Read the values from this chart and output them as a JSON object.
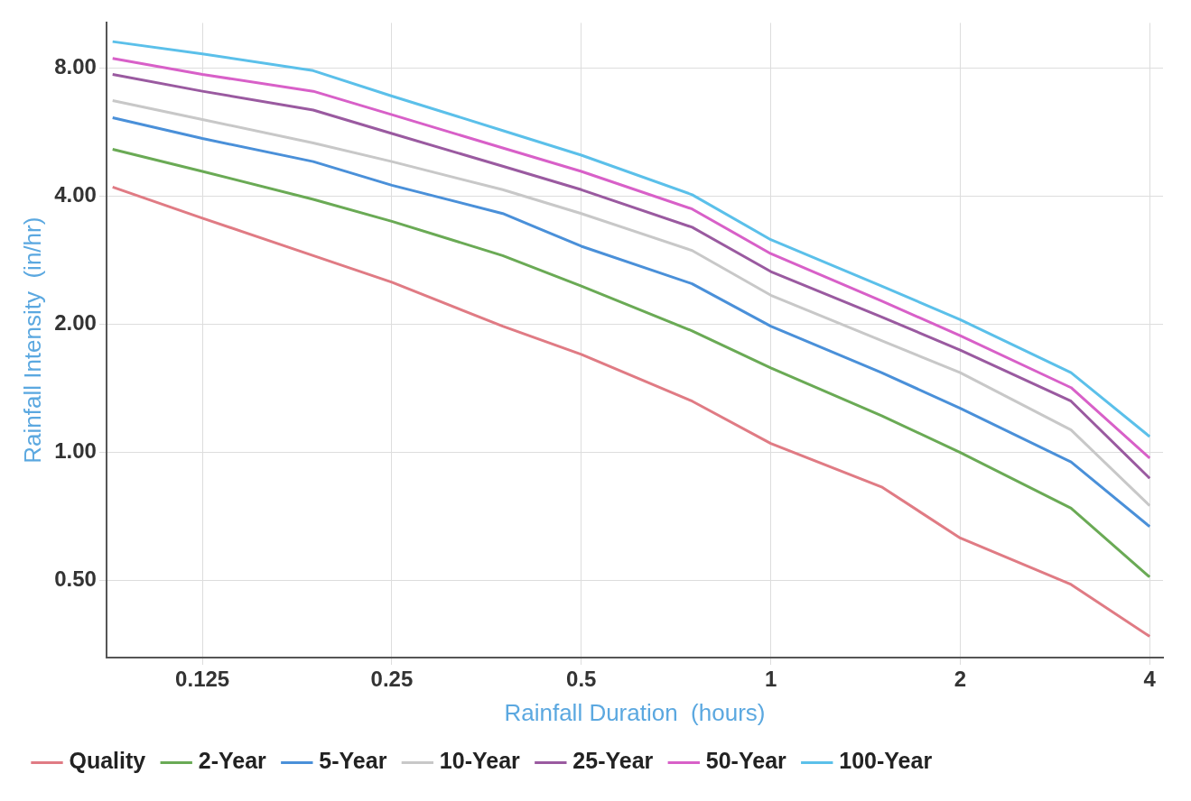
{
  "chart_data": {
    "type": "line",
    "xlabel": "Rainfall Duration  (hours)",
    "ylabel": "Rainfall Intensity  (in/hr)",
    "x": [
      0.09,
      0.125,
      0.1875,
      0.25,
      0.375,
      0.5,
      0.75,
      1,
      1.5,
      2,
      3,
      4
    ],
    "series": [
      {
        "name": "Quality",
        "color": "#e07b84",
        "values": [
          4.2,
          3.55,
          2.9,
          2.51,
          1.98,
          1.7,
          1.32,
          1.05,
          0.83,
          0.63,
          0.49,
          0.37
        ]
      },
      {
        "name": "2-Year",
        "color": "#6aaa55",
        "values": [
          5.15,
          4.57,
          3.93,
          3.49,
          2.9,
          2.46,
          1.93,
          1.58,
          1.22,
          1.0,
          0.74,
          0.51
        ]
      },
      {
        "name": "5-Year",
        "color": "#4a90d9",
        "values": [
          6.11,
          5.46,
          4.82,
          4.24,
          3.64,
          3.05,
          2.49,
          1.98,
          1.54,
          1.27,
          0.95,
          0.67
        ]
      },
      {
        "name": "10-Year",
        "color": "#c8c8c8",
        "values": [
          6.7,
          6.05,
          5.33,
          4.82,
          4.14,
          3.64,
          2.98,
          2.34,
          1.83,
          1.54,
          1.13,
          0.75
        ]
      },
      {
        "name": "25-Year",
        "color": "#9a5aa0",
        "values": [
          7.72,
          7.05,
          6.37,
          5.61,
          4.7,
          4.14,
          3.38,
          2.66,
          2.08,
          1.74,
          1.32,
          0.87
        ]
      },
      {
        "name": "50-Year",
        "color": "#d860c8",
        "values": [
          8.42,
          7.72,
          7.05,
          6.21,
          5.19,
          4.57,
          3.73,
          2.93,
          2.27,
          1.88,
          1.42,
          0.97
        ]
      },
      {
        "name": "100-Year",
        "color": "#5bc0ea",
        "values": [
          9.22,
          8.63,
          7.88,
          6.87,
          5.7,
          4.99,
          4.03,
          3.16,
          2.46,
          2.05,
          1.54,
          1.09
        ]
      }
    ],
    "log": "xy",
    "xlim": [
      0.088,
      4.2
    ],
    "ylim": [
      0.33,
      10.2
    ],
    "xticks": [
      0.125,
      0.25,
      0.5,
      1,
      2,
      4
    ],
    "yticks": [
      {
        "value": 0.5,
        "label": "0.50"
      },
      {
        "value": 1,
        "label": "1.00"
      },
      {
        "value": 2,
        "label": "2.00"
      },
      {
        "value": 4,
        "label": "4.00"
      },
      {
        "value": 8,
        "label": "8.00"
      }
    ],
    "grid": true,
    "legend": "bottom",
    "marker": "none",
    "line_style": "solid"
  }
}
